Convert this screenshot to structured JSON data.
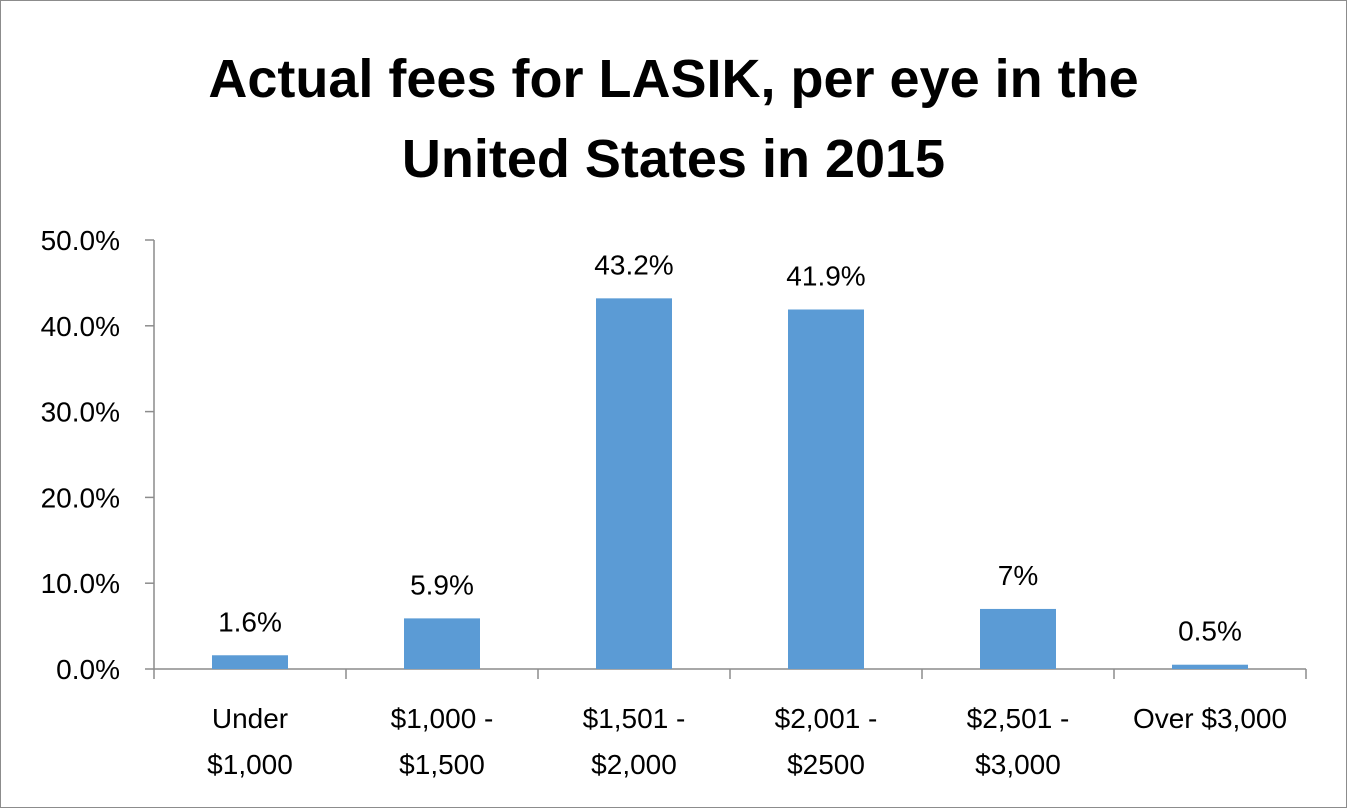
{
  "chart_data": {
    "type": "bar",
    "title_lines": [
      "Actual fees for LASIK, per eye in the",
      "United States in 2015"
    ],
    "categories": [
      [
        "Under",
        "$1,000"
      ],
      [
        "$1,000 -",
        "$1,500"
      ],
      [
        "$1,501 -",
        "$2,000"
      ],
      [
        "$2,001 -",
        "$2500"
      ],
      [
        "$2,501 -",
        "$3,000"
      ],
      [
        "Over $3,000"
      ]
    ],
    "values": [
      1.6,
      5.9,
      43.2,
      41.9,
      7,
      0.5
    ],
    "data_labels": [
      "1.6%",
      "5.9%",
      "43.2%",
      "41.9%",
      "7%",
      "0.5%"
    ],
    "ylim": [
      0,
      50
    ],
    "yticks": [
      0,
      10,
      20,
      30,
      40,
      50
    ],
    "ytick_labels": [
      "0.0%",
      "10.0%",
      "20.0%",
      "30.0%",
      "40.0%",
      "50.0%"
    ],
    "bar_color": "#5b9bd5",
    "axis_color": "#8c8c8c",
    "grid": false,
    "legend": "none"
  }
}
